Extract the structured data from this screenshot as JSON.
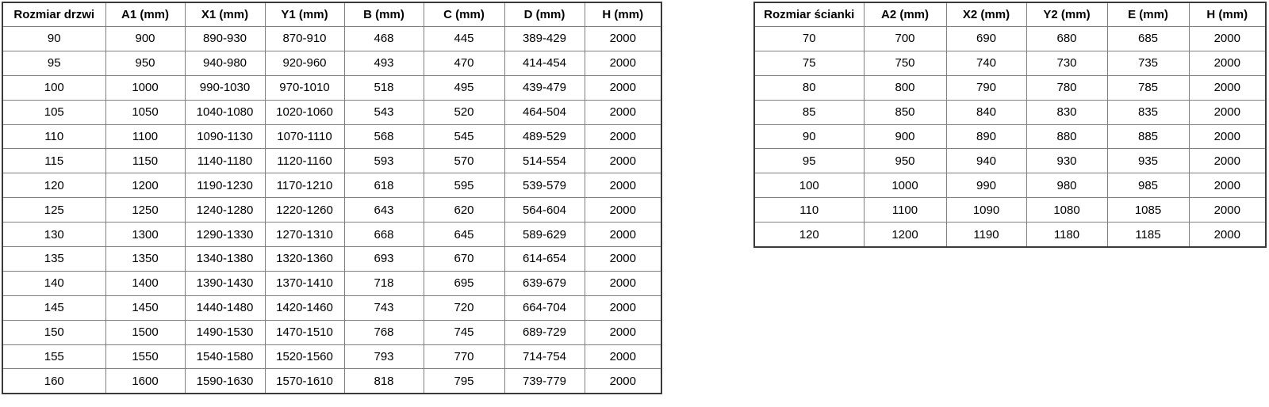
{
  "doors_table": {
    "name": "doors-size-table",
    "headers": [
      "Rozmiar drzwi",
      "A1 (mm)",
      "X1 (mm)",
      "Y1 (mm)",
      "B (mm)",
      "C (mm)",
      "D (mm)",
      "H (mm)"
    ],
    "rows": [
      [
        "90",
        "900",
        "890-930",
        "870-910",
        "468",
        "445",
        "389-429",
        "2000"
      ],
      [
        "95",
        "950",
        "940-980",
        "920-960",
        "493",
        "470",
        "414-454",
        "2000"
      ],
      [
        "100",
        "1000",
        "990-1030",
        "970-1010",
        "518",
        "495",
        "439-479",
        "2000"
      ],
      [
        "105",
        "1050",
        "1040-1080",
        "1020-1060",
        "543",
        "520",
        "464-504",
        "2000"
      ],
      [
        "110",
        "1100",
        "1090-1130",
        "1070-1110",
        "568",
        "545",
        "489-529",
        "2000"
      ],
      [
        "115",
        "1150",
        "1140-1180",
        "1120-1160",
        "593",
        "570",
        "514-554",
        "2000"
      ],
      [
        "120",
        "1200",
        "1190-1230",
        "1170-1210",
        "618",
        "595",
        "539-579",
        "2000"
      ],
      [
        "125",
        "1250",
        "1240-1280",
        "1220-1260",
        "643",
        "620",
        "564-604",
        "2000"
      ],
      [
        "130",
        "1300",
        "1290-1330",
        "1270-1310",
        "668",
        "645",
        "589-629",
        "2000"
      ],
      [
        "135",
        "1350",
        "1340-1380",
        "1320-1360",
        "693",
        "670",
        "614-654",
        "2000"
      ],
      [
        "140",
        "1400",
        "1390-1430",
        "1370-1410",
        "718",
        "695",
        "639-679",
        "2000"
      ],
      [
        "145",
        "1450",
        "1440-1480",
        "1420-1460",
        "743",
        "720",
        "664-704",
        "2000"
      ],
      [
        "150",
        "1500",
        "1490-1530",
        "1470-1510",
        "768",
        "745",
        "689-729",
        "2000"
      ],
      [
        "155",
        "1550",
        "1540-1580",
        "1520-1560",
        "793",
        "770",
        "714-754",
        "2000"
      ],
      [
        "160",
        "1600",
        "1590-1630",
        "1570-1610",
        "818",
        "795",
        "739-779",
        "2000"
      ]
    ]
  },
  "walls_table": {
    "name": "walls-size-table",
    "headers": [
      "Rozmiar ścianki",
      "A2 (mm)",
      "X2 (mm)",
      "Y2 (mm)",
      "E (mm)",
      "H (mm)"
    ],
    "rows": [
      [
        "70",
        "700",
        "690",
        "680",
        "685",
        "2000"
      ],
      [
        "75",
        "750",
        "740",
        "730",
        "735",
        "2000"
      ],
      [
        "80",
        "800",
        "790",
        "780",
        "785",
        "2000"
      ],
      [
        "85",
        "850",
        "840",
        "830",
        "835",
        "2000"
      ],
      [
        "90",
        "900",
        "890",
        "880",
        "885",
        "2000"
      ],
      [
        "95",
        "950",
        "940",
        "930",
        "935",
        "2000"
      ],
      [
        "100",
        "1000",
        "990",
        "980",
        "985",
        "2000"
      ],
      [
        "110",
        "1100",
        "1090",
        "1080",
        "1085",
        "2000"
      ],
      [
        "120",
        "1200",
        "1190",
        "1180",
        "1185",
        "2000"
      ]
    ]
  },
  "colors": {
    "background": "#ffffff",
    "border_outer": "#3a3a3a",
    "border_inner": "#808080",
    "text": "#000000"
  }
}
